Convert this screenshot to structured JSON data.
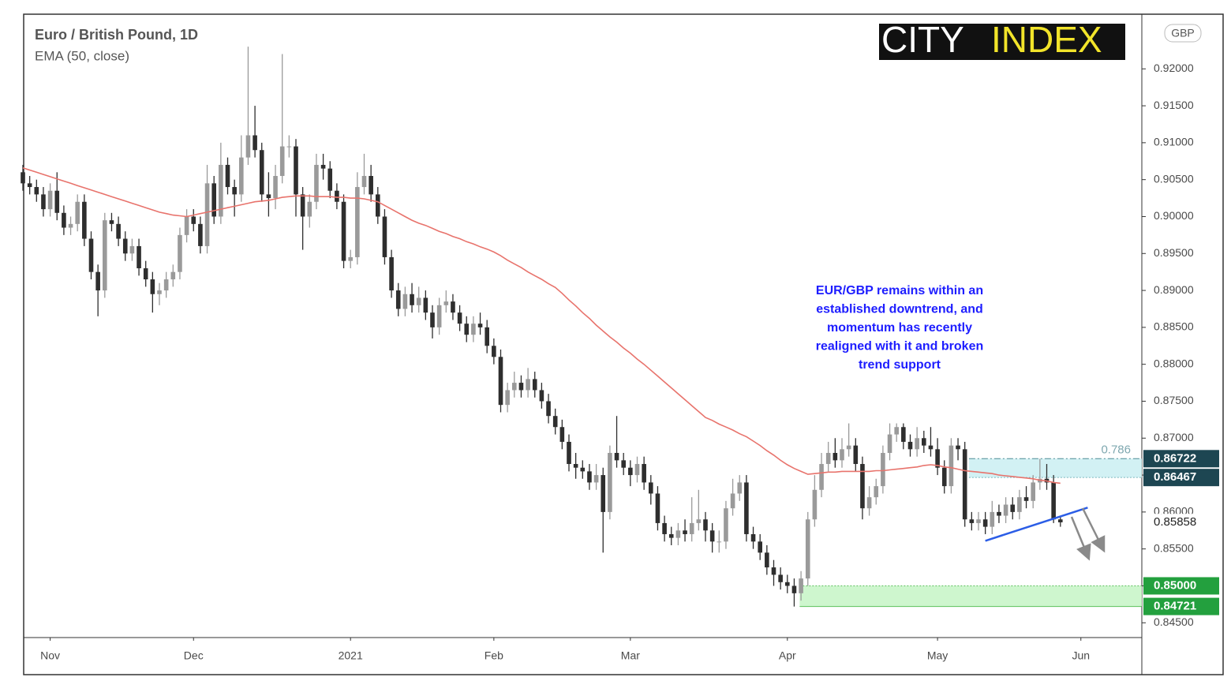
{
  "chart_data": {
    "type": "candlestick",
    "title": "Euro / British Pound, 1D",
    "currency": "GBP",
    "logo": [
      "CITY",
      "INDEX"
    ],
    "categories": [
      null,
      null,
      null,
      null,
      "Nov",
      null,
      null,
      null,
      null,
      null,
      null,
      null,
      null,
      null,
      null,
      null,
      null,
      null,
      null,
      null,
      null,
      null,
      null,
      null,
      null,
      "Dec",
      null,
      null,
      null,
      null,
      null,
      null,
      null,
      null,
      null,
      null,
      null,
      null,
      null,
      null,
      null,
      null,
      null,
      null,
      null,
      null,
      null,
      null,
      "2021",
      null,
      null,
      null,
      null,
      null,
      null,
      null,
      null,
      null,
      null,
      null,
      null,
      null,
      null,
      null,
      null,
      null,
      null,
      null,
      null,
      "Feb",
      null,
      null,
      null,
      null,
      null,
      null,
      null,
      null,
      null,
      null,
      null,
      null,
      null,
      null,
      null,
      null,
      null,
      null,
      null,
      "Mar",
      null,
      null,
      null,
      null,
      null,
      null,
      null,
      null,
      null,
      null,
      null,
      null,
      null,
      null,
      null,
      null,
      null,
      null,
      null,
      null,
      null,
      null,
      "Apr",
      null,
      null,
      null,
      null,
      null,
      null,
      null,
      null,
      null,
      null,
      null,
      null,
      null,
      null,
      null,
      null,
      null,
      null,
      null,
      null,
      null,
      "May",
      null,
      null,
      null,
      null,
      null,
      null,
      null,
      null,
      null,
      null,
      null,
      null,
      null,
      null,
      null,
      null,
      null,
      null,
      null,
      null,
      "Jun"
    ],
    "candles": {
      "up_color": "#9a9a9a",
      "down_color": "#2e2e2e",
      "open": [
        0.906,
        0.9045,
        0.904,
        0.903,
        0.901,
        0.9035,
        0.9005,
        0.8985,
        0.899,
        0.902,
        0.897,
        0.8925,
        0.89,
        0.8995,
        0.899,
        0.897,
        0.895,
        0.896,
        0.893,
        0.8915,
        0.8895,
        0.89,
        0.8915,
        0.8925,
        0.8975,
        0.9,
        0.899,
        0.896,
        0.9045,
        0.9,
        0.907,
        0.904,
        0.903,
        0.908,
        0.911,
        0.909,
        0.903,
        0.9025,
        0.9055,
        0.9095,
        0.9095,
        0.903,
        0.9,
        0.902,
        0.907,
        0.9065,
        0.9035,
        0.902,
        0.894,
        0.8945,
        0.904,
        0.9055,
        0.903,
        0.9,
        0.8945,
        0.89,
        0.8875,
        0.8895,
        0.888,
        0.889,
        0.887,
        0.885,
        0.888,
        0.8885,
        0.887,
        0.8855,
        0.884,
        0.8855,
        0.885,
        0.8825,
        0.881,
        0.8745,
        0.8765,
        0.8775,
        0.8765,
        0.878,
        0.8765,
        0.875,
        0.873,
        0.8715,
        0.8695,
        0.8665,
        0.866,
        0.8655,
        0.864,
        0.865,
        0.86,
        0.868,
        0.867,
        0.866,
        0.865,
        0.8665,
        0.864,
        0.8625,
        0.8585,
        0.857,
        0.8565,
        0.8575,
        0.857,
        0.8585,
        0.859,
        0.8575,
        0.856,
        0.856,
        0.8605,
        0.8625,
        0.864,
        0.857,
        0.856,
        0.8545,
        0.8525,
        0.8515,
        0.8505,
        0.85,
        0.849,
        0.851,
        0.859,
        0.863,
        0.8665,
        0.868,
        0.867,
        0.8685,
        0.869,
        0.8665,
        0.8605,
        0.862,
        0.8635,
        0.868,
        0.8705,
        0.8715,
        0.8695,
        0.8685,
        0.87,
        0.869,
        0.8685,
        0.866,
        0.8635,
        0.869,
        0.8685,
        0.859,
        0.8585,
        0.859,
        0.858,
        0.86,
        0.8595,
        0.861,
        0.86,
        0.862,
        0.8615,
        0.864,
        0.8645,
        0.864,
        0.859,
        null,
        null,
        null
      ],
      "high": [
        0.907,
        0.9055,
        0.905,
        0.904,
        0.9045,
        0.906,
        0.9015,
        0.9,
        0.903,
        0.903,
        0.898,
        0.8935,
        0.9005,
        0.9005,
        0.9,
        0.898,
        0.897,
        0.897,
        0.894,
        0.8925,
        0.891,
        0.8925,
        0.8935,
        0.8985,
        0.901,
        0.901,
        0.9,
        0.907,
        0.9055,
        0.91,
        0.908,
        0.905,
        0.911,
        0.923,
        0.915,
        0.91,
        0.906,
        0.907,
        0.922,
        0.911,
        0.9105,
        0.904,
        0.903,
        0.9085,
        0.9085,
        0.9075,
        0.9045,
        0.903,
        0.8955,
        0.906,
        0.9085,
        0.907,
        0.904,
        0.901,
        0.8955,
        0.891,
        0.8905,
        0.891,
        0.8905,
        0.89,
        0.888,
        0.889,
        0.89,
        0.8895,
        0.888,
        0.8865,
        0.8865,
        0.887,
        0.886,
        0.8835,
        0.882,
        0.8775,
        0.879,
        0.8785,
        0.8795,
        0.879,
        0.8775,
        0.876,
        0.874,
        0.8725,
        0.8705,
        0.868,
        0.867,
        0.8665,
        0.8665,
        0.866,
        0.869,
        0.873,
        0.868,
        0.867,
        0.8675,
        0.8675,
        0.865,
        0.8635,
        0.8595,
        0.858,
        0.8585,
        0.859,
        0.862,
        0.863,
        0.86,
        0.8585,
        0.8575,
        0.8615,
        0.8645,
        0.865,
        0.865,
        0.858,
        0.857,
        0.8555,
        0.8535,
        0.8525,
        0.8515,
        0.851,
        0.852,
        0.86,
        0.865,
        0.868,
        0.8695,
        0.87,
        0.87,
        0.872,
        0.87,
        0.8675,
        0.8635,
        0.8645,
        0.869,
        0.872,
        0.872,
        0.872,
        0.8705,
        0.8715,
        0.871,
        0.8715,
        0.87,
        0.867,
        0.87,
        0.87,
        0.8695,
        0.86,
        0.86,
        0.86,
        0.8615,
        0.861,
        0.862,
        0.862,
        0.863,
        0.8635,
        0.865,
        0.8672,
        0.8665,
        0.865,
        0.8595,
        null,
        null,
        null
      ],
      "low": [
        0.9035,
        0.903,
        0.902,
        0.9,
        0.9,
        0.8995,
        0.8975,
        0.8975,
        0.898,
        0.896,
        0.8915,
        0.8865,
        0.889,
        0.898,
        0.896,
        0.894,
        0.894,
        0.892,
        0.8905,
        0.887,
        0.888,
        0.889,
        0.8905,
        0.8915,
        0.8965,
        0.898,
        0.895,
        0.895,
        0.899,
        0.899,
        0.903,
        0.9,
        0.902,
        0.907,
        0.908,
        0.902,
        0.9,
        0.901,
        0.9045,
        0.908,
        0.9,
        0.8955,
        0.8985,
        0.901,
        0.905,
        0.9025,
        0.901,
        0.893,
        0.893,
        0.8935,
        0.903,
        0.902,
        0.899,
        0.8935,
        0.889,
        0.8865,
        0.8865,
        0.887,
        0.887,
        0.886,
        0.8835,
        0.884,
        0.887,
        0.886,
        0.8845,
        0.883,
        0.883,
        0.884,
        0.8815,
        0.88,
        0.8735,
        0.8735,
        0.8755,
        0.8755,
        0.8755,
        0.8755,
        0.874,
        0.872,
        0.8705,
        0.8685,
        0.8655,
        0.8645,
        0.8645,
        0.863,
        0.863,
        0.8545,
        0.859,
        0.866,
        0.865,
        0.8635,
        0.864,
        0.863,
        0.861,
        0.8575,
        0.856,
        0.8555,
        0.8555,
        0.856,
        0.856,
        0.8575,
        0.856,
        0.8545,
        0.8545,
        0.855,
        0.8595,
        0.8615,
        0.856,
        0.855,
        0.8535,
        0.8515,
        0.85,
        0.8495,
        0.849,
        0.8472,
        0.848,
        0.85,
        0.858,
        0.862,
        0.8655,
        0.866,
        0.866,
        0.8675,
        0.8655,
        0.859,
        0.8595,
        0.861,
        0.8625,
        0.867,
        0.8695,
        0.8685,
        0.8675,
        0.8675,
        0.868,
        0.8675,
        0.865,
        0.8625,
        0.8625,
        0.867,
        0.858,
        0.8575,
        0.8575,
        0.857,
        0.857,
        0.8585,
        0.8585,
        0.859,
        0.859,
        0.8605,
        0.8605,
        0.863,
        0.863,
        0.8585,
        0.858,
        null,
        null,
        null
      ],
      "close": [
        0.9045,
        0.904,
        0.903,
        0.901,
        0.9035,
        0.9005,
        0.8985,
        0.899,
        0.902,
        0.897,
        0.8925,
        0.89,
        0.8995,
        0.899,
        0.897,
        0.895,
        0.896,
        0.893,
        0.8915,
        0.8895,
        0.89,
        0.8915,
        0.8925,
        0.8975,
        0.9,
        0.899,
        0.896,
        0.9045,
        0.9,
        0.907,
        0.904,
        0.903,
        0.908,
        0.911,
        0.909,
        0.903,
        0.9025,
        0.9055,
        0.9095,
        0.9095,
        0.903,
        0.9,
        0.902,
        0.907,
        0.9065,
        0.9035,
        0.902,
        0.894,
        0.8945,
        0.904,
        0.9055,
        0.903,
        0.9,
        0.8945,
        0.89,
        0.8875,
        0.8895,
        0.888,
        0.889,
        0.887,
        0.885,
        0.888,
        0.8885,
        0.887,
        0.8855,
        0.884,
        0.8855,
        0.885,
        0.8825,
        0.881,
        0.8745,
        0.8765,
        0.8775,
        0.8765,
        0.878,
        0.8765,
        0.875,
        0.873,
        0.8715,
        0.8695,
        0.8665,
        0.866,
        0.8655,
        0.864,
        0.865,
        0.86,
        0.868,
        0.867,
        0.866,
        0.865,
        0.8665,
        0.864,
        0.8625,
        0.8585,
        0.857,
        0.8565,
        0.8575,
        0.857,
        0.8585,
        0.859,
        0.8575,
        0.856,
        0.856,
        0.8605,
        0.8625,
        0.864,
        0.857,
        0.856,
        0.8545,
        0.8525,
        0.8515,
        0.8505,
        0.85,
        0.849,
        0.851,
        0.859,
        0.863,
        0.8665,
        0.868,
        0.867,
        0.8685,
        0.869,
        0.8665,
        0.8605,
        0.862,
        0.8635,
        0.868,
        0.8705,
        0.8715,
        0.8695,
        0.8685,
        0.87,
        0.869,
        0.8685,
        0.866,
        0.8635,
        0.869,
        0.8685,
        0.859,
        0.8585,
        0.859,
        0.858,
        0.86,
        0.8595,
        0.861,
        0.86,
        0.862,
        0.8615,
        0.864,
        0.8645,
        0.864,
        0.859,
        0.8586,
        null,
        null,
        null
      ]
    },
    "series": [
      {
        "name": "EMA (50, close)",
        "color": "#e8736c",
        "values": [
          0.9066,
          0.9063,
          0.906,
          0.9057,
          0.9054,
          0.9051,
          0.9048,
          0.9045,
          0.9042,
          0.9039,
          0.9036,
          0.9033,
          0.903,
          0.9027,
          0.9024,
          0.9021,
          0.9018,
          0.9015,
          0.9012,
          0.9009,
          0.9006,
          0.9004,
          0.9002,
          0.9001,
          0.9,
          0.9002,
          0.9004,
          0.9006,
          0.9008,
          0.901,
          0.9012,
          0.9014,
          0.9016,
          0.9018,
          0.902,
          0.9021,
          0.9022,
          0.9024,
          0.9026,
          0.9027,
          0.9028,
          0.9028,
          0.9028,
          0.9027,
          0.9027,
          0.9027,
          0.9026,
          0.9026,
          0.9025,
          0.9025,
          0.9024,
          0.9022,
          0.902,
          0.9015,
          0.901,
          0.9005,
          0.9,
          0.8995,
          0.8991,
          0.8988,
          0.8984,
          0.898,
          0.8977,
          0.8973,
          0.897,
          0.8966,
          0.8963,
          0.8959,
          0.8956,
          0.8952,
          0.8947,
          0.8941,
          0.8936,
          0.8931,
          0.8925,
          0.892,
          0.8915,
          0.8909,
          0.8904,
          0.8896,
          0.8887,
          0.8879,
          0.887,
          0.8862,
          0.8853,
          0.8845,
          0.8837,
          0.883,
          0.8822,
          0.8815,
          0.8807,
          0.88,
          0.8792,
          0.8784,
          0.8776,
          0.8768,
          0.876,
          0.8752,
          0.8744,
          0.8736,
          0.8728,
          0.8724,
          0.8719,
          0.8715,
          0.8711,
          0.8706,
          0.8702,
          0.8696,
          0.869,
          0.8683,
          0.8677,
          0.867,
          0.8664,
          0.8659,
          0.8655,
          0.8651,
          0.8652,
          0.8653,
          0.8654,
          0.8654,
          0.8655,
          0.8655,
          0.8655,
          0.8655,
          0.8655,
          0.8656,
          0.8656,
          0.8657,
          0.8658,
          0.8659,
          0.866,
          0.8661,
          0.8663,
          0.8664,
          0.8663,
          0.8661,
          0.866,
          0.8658,
          0.8656,
          0.8655,
          0.8654,
          0.8653,
          0.8652,
          0.865,
          0.8649,
          0.8648,
          0.8647,
          0.8646,
          0.8645,
          0.8643,
          0.8642,
          0.864,
          0.8639,
          null,
          null,
          null
        ]
      }
    ],
    "ylim": [
      0.843,
      0.9274
    ],
    "yticks": [
      {
        "value": 0.845,
        "label": "0.84500"
      },
      {
        "value": 0.85,
        "label": "0.85000"
      },
      {
        "value": 0.855,
        "label": "0.85500"
      },
      {
        "value": 0.86,
        "label": "0.86000"
      },
      {
        "value": 0.865,
        "label": "0.86500"
      },
      {
        "value": 0.87,
        "label": "0.87000"
      },
      {
        "value": 0.875,
        "label": "0.87500"
      },
      {
        "value": 0.88,
        "label": "0.88000"
      },
      {
        "value": 0.885,
        "label": "0.88500"
      },
      {
        "value": 0.89,
        "label": "0.89000"
      },
      {
        "value": 0.895,
        "label": "0.89500"
      },
      {
        "value": 0.9,
        "label": "0.90000"
      },
      {
        "value": 0.905,
        "label": "0.90500"
      },
      {
        "value": 0.91,
        "label": "0.91000"
      },
      {
        "value": 0.915,
        "label": "0.91500"
      },
      {
        "value": 0.92,
        "label": "0.92000"
      }
    ],
    "zones": [
      {
        "from": 0.84721,
        "to": 0.85,
        "color": "#c9f5c9"
      },
      {
        "from": 0.86467,
        "to": 0.86722,
        "color": "#cdeff3"
      }
    ],
    "fib_label": "0.786",
    "trendline": {
      "values": [
        0.8561,
        0.8606
      ],
      "color": "#2b5de6"
    },
    "price_labels": [
      {
        "value": 0.86722,
        "label": "0.86722",
        "color": "#1d4652"
      },
      {
        "value": 0.86467,
        "label": "0.86467",
        "color": "#1d4652"
      },
      {
        "value": 0.85858,
        "label": "0.85858",
        "color": "#ffffff"
      },
      {
        "value": 0.85,
        "label": "0.85000",
        "color": "#23a03e"
      },
      {
        "value": 0.84721,
        "label": "0.84721",
        "color": "#23a03e"
      }
    ],
    "annotation": [
      "EUR/GBP remains within an",
      "established downtrend, and",
      "momentum has recently",
      "realigned with it and broken",
      "trend support"
    ]
  }
}
